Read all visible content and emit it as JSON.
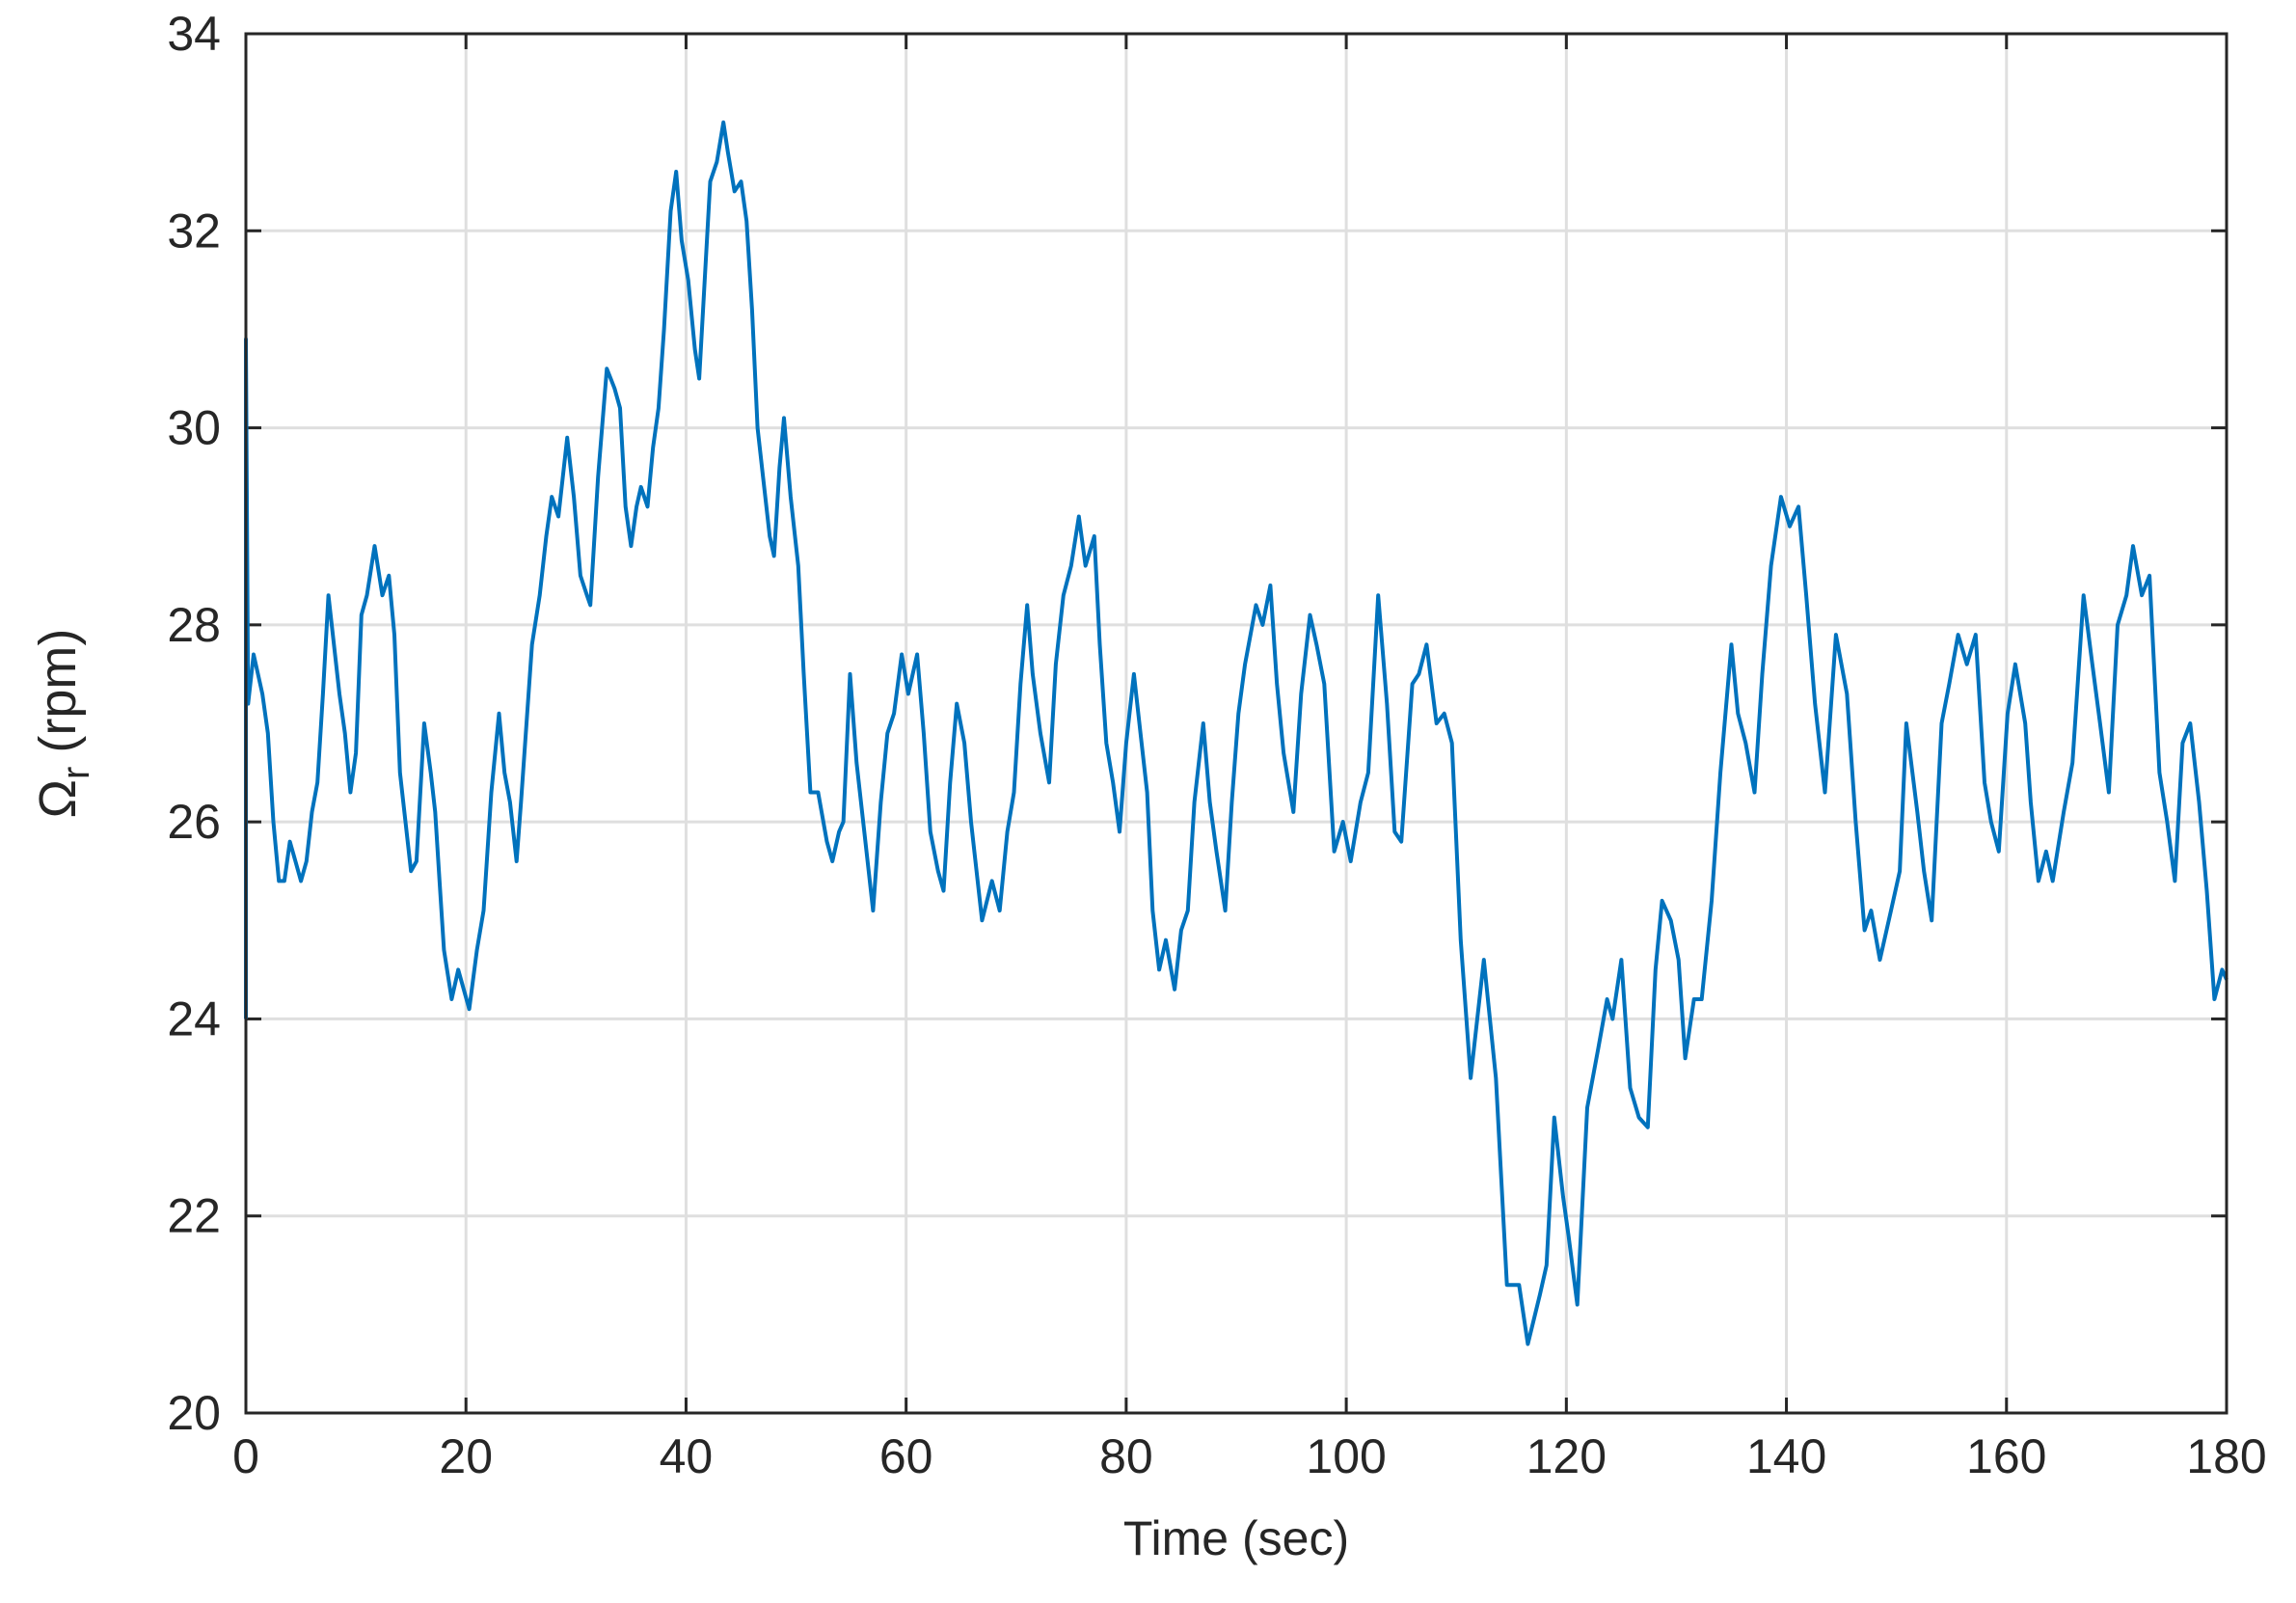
{
  "chart_data": {
    "type": "line",
    "xlabel": "Time (sec)",
    "ylabel": {
      "symbol": "Ω",
      "subscript": "r",
      "unit": "(rpm)"
    },
    "xlim": [
      0,
      180
    ],
    "ylim": [
      20,
      34
    ],
    "xticks": [
      0,
      20,
      40,
      60,
      80,
      100,
      120,
      140,
      160,
      180
    ],
    "yticks": [
      20,
      22,
      24,
      26,
      28,
      30,
      32,
      34
    ],
    "grid": true,
    "color": "#0072bd",
    "x": [
      0,
      0,
      0.2,
      0.7,
      1.5,
      2,
      2.5,
      3,
      3.5,
      4,
      4.5,
      5,
      5.5,
      6,
      6.5,
      7,
      7.5,
      8,
      8.5,
      9,
      9.5,
      10,
      10.5,
      11,
      11.7,
      12.4,
      13,
      13.5,
      14,
      14.5,
      15,
      15.5,
      16.2,
      16.8,
      17.2,
      17.6,
      18,
      18.7,
      19.3,
      19.8,
      20.3,
      21,
      21.6,
      22.3,
      23,
      23.5,
      24,
      24.6,
      25,
      26,
      26.7,
      27.3,
      27.8,
      28.4,
      29.2,
      29.8,
      30.4,
      31,
      31.3,
      32,
      32.8,
      33.5,
      34,
      34.5,
      35,
      35.5,
      35.9,
      36.5,
      37,
      37.5,
      38,
      38.6,
      39.1,
      39.6,
      40.2,
      40.8,
      41.2,
      41.7,
      42.2,
      42.8,
      43.4,
      43.8,
      44.4,
      45,
      45.5,
      46,
      46.5,
      47,
      47.6,
      48,
      48.5,
      48.9,
      49.5,
      50.2,
      50.7,
      51.3,
      52,
      52.8,
      53.3,
      53.9,
      54.3,
      54.9,
      55.5,
      56.2,
      57,
      57.7,
      58.3,
      58.9,
      59.6,
      60.2,
      61,
      61.6,
      62.2,
      62.9,
      63.4,
      64,
      64.6,
      65.3,
      65.9,
      66.9,
      67.8,
      68.5,
      69.2,
      69.8,
      70.4,
      71,
      71.5,
      72.2,
      73,
      73.6,
      74.3,
      75,
      75.7,
      76.3,
      77.1,
      77.6,
      78.2,
      78.8,
      79.4,
      80,
      80.7,
      81.3,
      81.9,
      82.4,
      83,
      83.6,
      84.4,
      85,
      85.6,
      86.2,
      87,
      87.6,
      88.2,
      89,
      89.6,
      90.2,
      90.8,
      91.8,
      92.4,
      93.1,
      93.7,
      94.3,
      95.2,
      95.9,
      96.7,
      97.3,
      98,
      98.9,
      99.7,
      100.4,
      101.3,
      102,
      102.9,
      103.7,
      104.4,
      105,
      106,
      106.6,
      107.3,
      108.2,
      108.9,
      109.6,
      110.4,
      111.3,
      112.5,
      113.6,
      114.6,
      115.7,
      116.5,
      117.6,
      118.2,
      118.9,
      119.7,
      120.2,
      121,
      121.9,
      122.9,
      123.7,
      124.2,
      125,
      125.8,
      126.6,
      127.4,
      128.1,
      128.7,
      129.5,
      130.2,
      130.8,
      131.6,
      132.3,
      133.2,
      134,
      135,
      135.6,
      136.3,
      137.1,
      137.8,
      138.6,
      139.5,
      140.3,
      141.1,
      141.8,
      142.6,
      143.5,
      144.5,
      145.5,
      146.3,
      147.1,
      147.7,
      148.5,
      149.5,
      150.3,
      150.9,
      151.9,
      152.5,
      153.2,
      154.1,
      154.8,
      155.6,
      156.4,
      157.2,
      158,
      158.6,
      159.3,
      160.1,
      160.8,
      161.7,
      162.2,
      162.9,
      163.6,
      164.2,
      165.2,
      166,
      167,
      167.8,
      168.5,
      169.3,
      170.1,
      170.9,
      171.5,
      172.3,
      173,
      173.9,
      174.6,
      175.3,
      176,
      176.7,
      177.5,
      178.2,
      178.9,
      179.6,
      180
    ],
    "values": [
      24.0,
      30.9,
      27.2,
      27.7,
      27.3,
      26.9,
      26.0,
      25.4,
      25.4,
      25.8,
      25.6,
      25.4,
      25.6,
      26.1,
      26.4,
      27.3,
      28.3,
      27.8,
      27.3,
      26.9,
      26.3,
      26.7,
      28.1,
      28.3,
      28.8,
      28.3,
      28.5,
      27.9,
      26.5,
      26.0,
      25.5,
      25.6,
      27.0,
      26.5,
      26.1,
      25.4,
      24.7,
      24.2,
      24.5,
      24.3,
      24.1,
      24.7,
      25.1,
      26.3,
      27.1,
      26.5,
      26.2,
      25.6,
      26.2,
      27.8,
      28.3,
      28.9,
      29.3,
      29.1,
      29.9,
      29.3,
      28.5,
      28.3,
      28.2,
      29.5,
      30.6,
      30.4,
      30.2,
      29.2,
      28.8,
      29.2,
      29.4,
      29.2,
      29.8,
      30.2,
      31.0,
      32.2,
      32.6,
      31.9,
      31.5,
      30.8,
      30.5,
      31.5,
      32.5,
      32.7,
      33.1,
      32.8,
      32.4,
      32.5,
      32.1,
      31.2,
      30.0,
      29.5,
      28.9,
      28.7,
      29.6,
      30.1,
      29.3,
      28.6,
      27.5,
      26.3,
      26.3,
      25.8,
      25.6,
      25.9,
      26.0,
      27.5,
      26.6,
      25.9,
      25.1,
      26.2,
      26.9,
      27.1,
      27.7,
      27.3,
      27.7,
      26.9,
      25.9,
      25.5,
      25.3,
      26.4,
      27.2,
      26.8,
      26.0,
      25.0,
      25.4,
      25.1,
      25.9,
      26.3,
      27.4,
      28.2,
      27.5,
      26.9,
      26.4,
      27.6,
      28.3,
      28.6,
      29.1,
      28.6,
      28.9,
      27.8,
      26.8,
      26.4,
      25.9,
      26.8,
      27.5,
      26.9,
      26.3,
      25.1,
      24.5,
      24.8,
      24.3,
      24.9,
      25.1,
      26.2,
      27.0,
      26.2,
      25.7,
      25.1,
      26.2,
      27.1,
      27.6,
      28.2,
      28.0,
      28.4,
      27.4,
      26.7,
      26.1,
      27.3,
      28.1,
      27.8,
      27.4,
      25.7,
      26.0,
      25.6,
      26.2,
      26.5,
      28.3,
      27.2,
      25.9,
      25.8,
      27.4,
      27.5,
      27.8,
      27.0,
      27.1,
      26.8,
      24.8,
      23.4,
      24.6,
      23.4,
      21.3,
      21.3,
      20.7,
      21.2,
      21.5,
      23.0,
      22.2,
      21.8,
      21.1,
      23.1,
      23.7,
      24.2,
      24.0,
      24.6,
      23.3,
      23.0,
      22.9,
      24.5,
      25.2,
      25.0,
      24.6,
      23.6,
      24.2,
      24.2,
      25.2,
      26.5,
      27.8,
      27.1,
      26.8,
      26.3,
      27.5,
      28.6,
      29.3,
      29.0,
      29.2,
      28.3,
      27.2,
      26.3,
      27.9,
      27.3,
      26.0,
      24.9,
      25.1,
      24.6,
      25.1,
      25.5,
      27.0,
      26.1,
      25.5,
      25.0,
      27.0,
      27.4,
      27.9,
      27.6,
      27.9,
      26.4,
      26.0,
      25.7,
      27.1,
      27.6,
      27.0,
      26.2,
      25.4,
      25.7,
      25.4,
      26.1,
      26.6,
      28.3,
      27.6,
      27.0,
      26.3,
      28.0,
      28.3,
      28.8,
      28.3,
      28.5,
      26.5,
      26.0,
      25.4,
      26.8,
      27.0,
      26.2,
      25.3,
      24.2,
      24.5,
      24.4
    ]
  }
}
